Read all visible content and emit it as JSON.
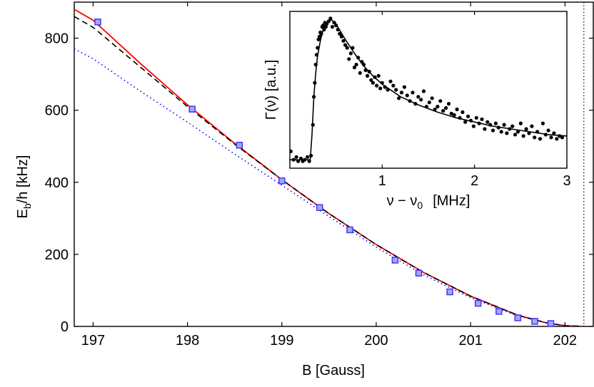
{
  "chart_data": [
    {
      "type": "scatter+line",
      "xlabel": "B  [Gauss]",
      "ylabel_base": "E",
      "ylabel_sub": "b",
      "ylabel_rest": "/h  [kHz]",
      "xlim": [
        196.8,
        202.3
      ],
      "ylim": [
        0,
        900
      ],
      "x_ticks": [
        197,
        198,
        199,
        200,
        201,
        202
      ],
      "y_ticks": [
        0,
        200,
        400,
        600,
        800
      ],
      "grid": false,
      "resonance_line_x": 202.2,
      "series": [
        {
          "kind": "markers",
          "color": "#3a3aff",
          "fill": "#a6a6f2",
          "x": [
            197.05,
            198.05,
            198.55,
            199.0,
            199.4,
            199.72,
            200.2,
            200.45,
            200.78,
            201.08,
            201.3,
            201.5,
            201.68,
            201.85
          ],
          "y": [
            845,
            603,
            503,
            404,
            330,
            268,
            184,
            148,
            96,
            64,
            42,
            24,
            14,
            8
          ]
        },
        {
          "kind": "line",
          "style": "solid",
          "color": "#ff0000",
          "x": [
            196.8,
            197.0,
            197.5,
            198.0,
            198.5,
            199.0,
            199.5,
            200.0,
            200.5,
            201.0,
            201.5,
            201.8,
            202.0,
            202.2
          ],
          "y": [
            880,
            850,
            730,
            615,
            508,
            407,
            313,
            227,
            150,
            84,
            31,
            10,
            2,
            0
          ]
        },
        {
          "kind": "line",
          "style": "dashed",
          "color": "#000000",
          "x": [
            196.8,
            197.0,
            197.5,
            198.0,
            198.5,
            199.0,
            199.5,
            200.0,
            200.5,
            201.0,
            201.5,
            201.8,
            202.0,
            202.2
          ],
          "y": [
            860,
            830,
            720,
            610,
            506,
            407,
            313,
            227,
            150,
            84,
            31,
            10,
            2,
            0
          ]
        },
        {
          "kind": "line",
          "style": "dotted",
          "color": "#0000ff",
          "x": [
            196.8,
            197.0,
            197.5,
            198.0,
            198.5,
            199.0,
            199.5,
            200.0,
            200.5,
            201.0,
            201.5,
            201.8,
            202.0,
            202.2
          ],
          "y": [
            770,
            743,
            653,
            567,
            478,
            392,
            305,
            220,
            143,
            80,
            29,
            10,
            2,
            0
          ]
        }
      ]
    },
    {
      "type": "scatter+line",
      "inset": true,
      "xlabel": "ν − ν",
      "xlabel_sub": "0",
      "xlabel_unit": "[MHz]",
      "ylabel": "Γ(ν) [a.u.]",
      "xlim": [
        0,
        3
      ],
      "ylim": [
        0,
        1
      ],
      "x_ticks": [
        1,
        2,
        3
      ],
      "grid": false,
      "fit": {
        "kind": "line",
        "color": "#000000",
        "x": [
          0.0,
          0.22,
          0.24,
          0.26,
          0.28,
          0.3,
          0.33,
          0.36,
          0.4,
          0.45,
          0.5,
          0.6,
          0.7,
          0.8,
          0.9,
          1.0,
          1.2,
          1.4,
          1.6,
          1.8,
          2.0,
          2.2,
          2.4,
          2.6,
          2.8,
          3.0
        ],
        "y": [
          0.0,
          0.0,
          0.18,
          0.45,
          0.62,
          0.74,
          0.85,
          0.93,
          0.98,
          1.0,
          0.97,
          0.86,
          0.76,
          0.67,
          0.6,
          0.54,
          0.45,
          0.39,
          0.34,
          0.3,
          0.27,
          0.24,
          0.22,
          0.2,
          0.18,
          0.17
        ]
      },
      "points": {
        "kind": "markers",
        "color": "#000000",
        "x": [
          0.01,
          0.04,
          0.07,
          0.09,
          0.12,
          0.14,
          0.16,
          0.19,
          0.21,
          0.23,
          0.25,
          0.26,
          0.27,
          0.28,
          0.29,
          0.3,
          0.31,
          0.32,
          0.33,
          0.34,
          0.35,
          0.36,
          0.37,
          0.38,
          0.39,
          0.4,
          0.42,
          0.44,
          0.46,
          0.48,
          0.5,
          0.52,
          0.54,
          0.56,
          0.58,
          0.6,
          0.62,
          0.64,
          0.66,
          0.68,
          0.7,
          0.72,
          0.74,
          0.76,
          0.78,
          0.8,
          0.82,
          0.84,
          0.86,
          0.88,
          0.9,
          0.92,
          0.94,
          0.96,
          0.98,
          1.0,
          1.03,
          1.06,
          1.09,
          1.12,
          1.15,
          1.18,
          1.21,
          1.24,
          1.27,
          1.3,
          1.33,
          1.36,
          1.39,
          1.42,
          1.45,
          1.48,
          1.51,
          1.54,
          1.57,
          1.6,
          1.63,
          1.66,
          1.69,
          1.72,
          1.75,
          1.78,
          1.81,
          1.84,
          1.87,
          1.9,
          1.93,
          1.96,
          1.99,
          2.02,
          2.05,
          2.08,
          2.11,
          2.14,
          2.17,
          2.2,
          2.23,
          2.26,
          2.29,
          2.32,
          2.35,
          2.38,
          2.41,
          2.44,
          2.47,
          2.5,
          2.53,
          2.56,
          2.59,
          2.62,
          2.65,
          2.68,
          2.71,
          2.74,
          2.77,
          2.8,
          2.83,
          2.86,
          2.89,
          2.92,
          2.95
        ],
        "y": [
          0.06,
          0.0,
          0.02,
          -0.01,
          0.01,
          -0.01,
          0.0,
          0.02,
          -0.01,
          0.03,
          0.25,
          0.45,
          0.55,
          0.68,
          0.75,
          0.8,
          0.86,
          0.88,
          0.91,
          0.9,
          0.95,
          0.96,
          0.93,
          0.98,
          0.95,
          0.97,
          0.99,
          1.01,
          0.95,
          0.98,
          0.96,
          0.93,
          0.9,
          0.88,
          0.85,
          0.82,
          0.8,
          0.72,
          0.76,
          0.8,
          0.66,
          0.68,
          0.73,
          0.62,
          0.7,
          0.68,
          0.64,
          0.6,
          0.63,
          0.57,
          0.55,
          0.59,
          0.53,
          0.6,
          0.51,
          0.55,
          0.52,
          0.5,
          0.56,
          0.53,
          0.5,
          0.44,
          0.48,
          0.52,
          0.46,
          0.42,
          0.48,
          0.4,
          0.45,
          0.43,
          0.49,
          0.38,
          0.41,
          0.44,
          0.36,
          0.38,
          0.42,
          0.35,
          0.37,
          0.4,
          0.33,
          0.32,
          0.36,
          0.3,
          0.34,
          0.27,
          0.31,
          0.28,
          0.24,
          0.3,
          0.26,
          0.29,
          0.22,
          0.27,
          0.25,
          0.21,
          0.26,
          0.23,
          0.2,
          0.25,
          0.19,
          0.22,
          0.24,
          0.18,
          0.2,
          0.26,
          0.17,
          0.22,
          0.19,
          0.24,
          0.16,
          0.2,
          0.15,
          0.26,
          0.18,
          0.21,
          0.16,
          0.19,
          0.15,
          0.17,
          0.16
        ]
      }
    }
  ]
}
